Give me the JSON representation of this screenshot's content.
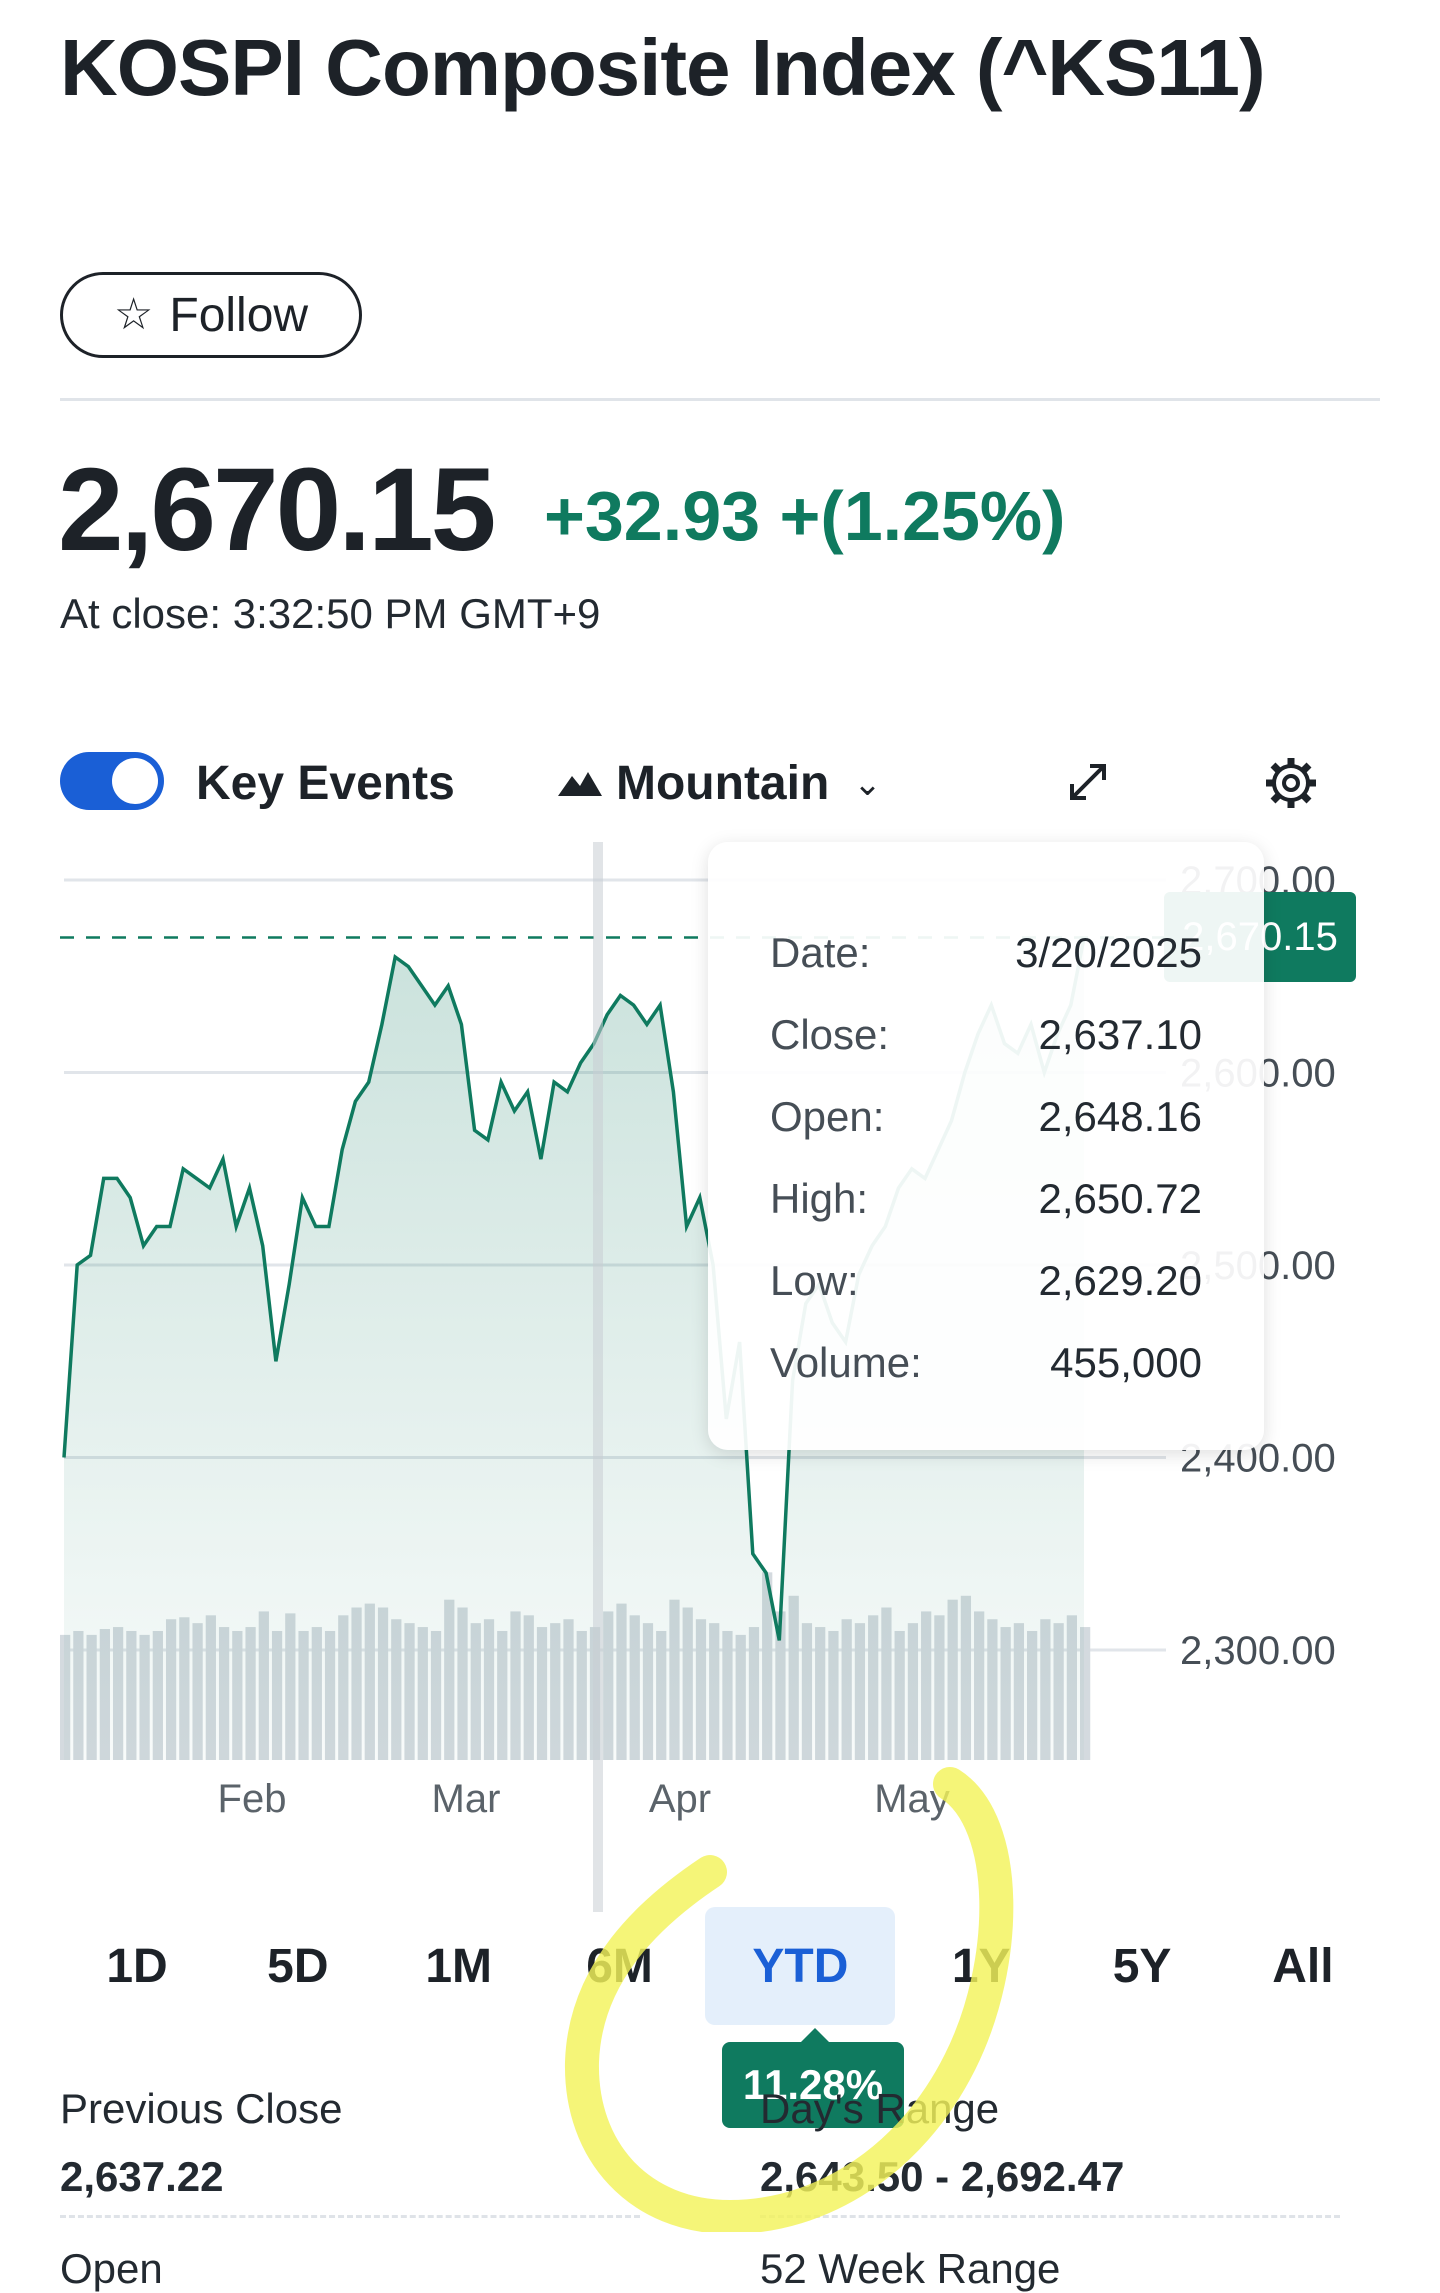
{
  "header": {
    "title": "KOSPI Composite Index (^KS11)",
    "follow_label": "Follow"
  },
  "quote": {
    "price": "2,670.15",
    "change": "+32.93 +(1.25%)",
    "close_time": "At close: 3:32:50 PM GMT+9"
  },
  "chart_controls": {
    "key_events_label": "Key Events",
    "key_events_enabled": true,
    "chart_type_label": "Mountain",
    "icons": [
      "mountain-icon",
      "chevron-down-icon",
      "expand-icon",
      "gear-icon",
      "star-icon"
    ]
  },
  "tooltip": {
    "rows": [
      {
        "label": "Date:",
        "value": "3/20/2025"
      },
      {
        "label": "Close:",
        "value": "2,637.10"
      },
      {
        "label": "Open:",
        "value": "2,648.16"
      },
      {
        "label": "High:",
        "value": "2,650.72"
      },
      {
        "label": "Low:",
        "value": "2,629.20"
      },
      {
        "label": "Volume:",
        "value": "455,000"
      }
    ]
  },
  "chart_data": {
    "type": "area",
    "x_tick_labels": [
      "Feb",
      "Mar",
      "Apr",
      "May"
    ],
    "y_tick_labels": [
      "2,700.00",
      "2,600.00",
      "2,500.00",
      "2,400.00",
      "2,300.00"
    ],
    "ylim": [
      2250,
      2710
    ],
    "current_price_label": "2,670.15",
    "current_price": 2670.15,
    "grid": true,
    "values": [
      2400,
      2500,
      2505,
      2545,
      2545,
      2535,
      2510,
      2520,
      2520,
      2550,
      2545,
      2540,
      2555,
      2520,
      2540,
      2510,
      2450,
      2490,
      2535,
      2520,
      2520,
      2560,
      2585,
      2595,
      2625,
      2660,
      2655,
      2645,
      2635,
      2645,
      2625,
      2570,
      2565,
      2595,
      2580,
      2590,
      2555,
      2595,
      2590,
      2605,
      2615,
      2630,
      2640,
      2635,
      2625,
      2635,
      2590,
      2520,
      2535,
      2500,
      2420,
      2460,
      2350,
      2340,
      2305,
      2440,
      2480,
      2490,
      2470,
      2460,
      2495,
      2510,
      2520,
      2540,
      2550,
      2545,
      2560,
      2575,
      2600,
      2620,
      2635,
      2615,
      2610,
      2625,
      2600,
      2620,
      2635,
      2670
    ],
    "volume": [
      64,
      66,
      64,
      67,
      68,
      66,
      64,
      66,
      72,
      73,
      70,
      74,
      68,
      66,
      68,
      76,
      66,
      75,
      66,
      68,
      66,
      74,
      78,
      80,
      78,
      72,
      70,
      68,
      66,
      82,
      78,
      70,
      72,
      66,
      76,
      74,
      68,
      70,
      72,
      66,
      68,
      76,
      80,
      74,
      70,
      66,
      82,
      78,
      72,
      70,
      66,
      64,
      68,
      96,
      76,
      84,
      70,
      68,
      66,
      72,
      70,
      74,
      78,
      66,
      70,
      76,
      74,
      82,
      84,
      76,
      72,
      68,
      70,
      66,
      72,
      70,
      74,
      68
    ]
  },
  "ranges": {
    "buttons": [
      "1D",
      "5D",
      "1M",
      "6M",
      "YTD",
      "1Y",
      "5Y",
      "All"
    ],
    "active": "YTD",
    "ytd_return": "11.28%"
  },
  "stats": {
    "previous_close_label": "Previous Close",
    "previous_close_value": "2,637.22",
    "days_range_label": "Day's Range",
    "days_range_value": "2,643.50 - 2,692.47",
    "open_label": "Open",
    "week52_label": "52 Week Range"
  }
}
